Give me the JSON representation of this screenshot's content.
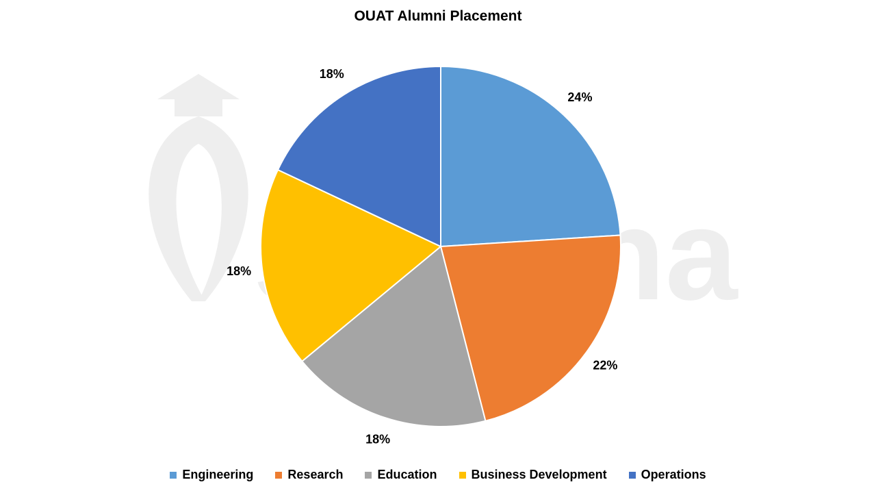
{
  "chart_data": {
    "type": "pie",
    "title": "OUAT Alumni Placement",
    "categories": [
      "Engineering",
      "Research",
      "Education",
      "Business Development",
      "Operations"
    ],
    "values": [
      24,
      22,
      18,
      18,
      18
    ],
    "value_labels": [
      "24%",
      "22%",
      "18%",
      "18%",
      "18%"
    ],
    "colors": [
      "#5B9BD5",
      "#ED7D31",
      "#A5A5A5",
      "#FFC000",
      "#4472C4"
    ],
    "legend_placement": "bottom"
  },
  "watermark": {
    "text": "shiksha"
  }
}
